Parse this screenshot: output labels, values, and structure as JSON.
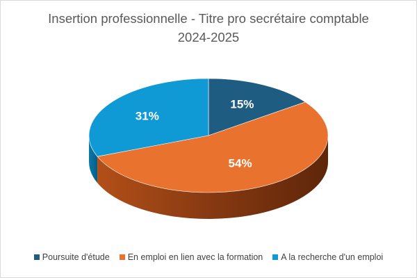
{
  "chart_data": {
    "type": "pie",
    "title_lines": [
      "Insertion professionnelle - Titre pro secrétaire comptable",
      "2024-2025"
    ],
    "categories": [
      "Poursuite d'étude",
      "En emploi en lien avec la formation",
      "A la recherche d'un emploi"
    ],
    "values": [
      15,
      54,
      31
    ],
    "value_labels": [
      "15%",
      "54%",
      "31%"
    ],
    "colors": [
      "#1f5c82",
      "#e8722e",
      "#0f9ad6"
    ],
    "side_colors": [
      "#173f58",
      "#7a3410",
      "#0b6a94"
    ],
    "legend_position": "bottom",
    "three_d": true
  }
}
